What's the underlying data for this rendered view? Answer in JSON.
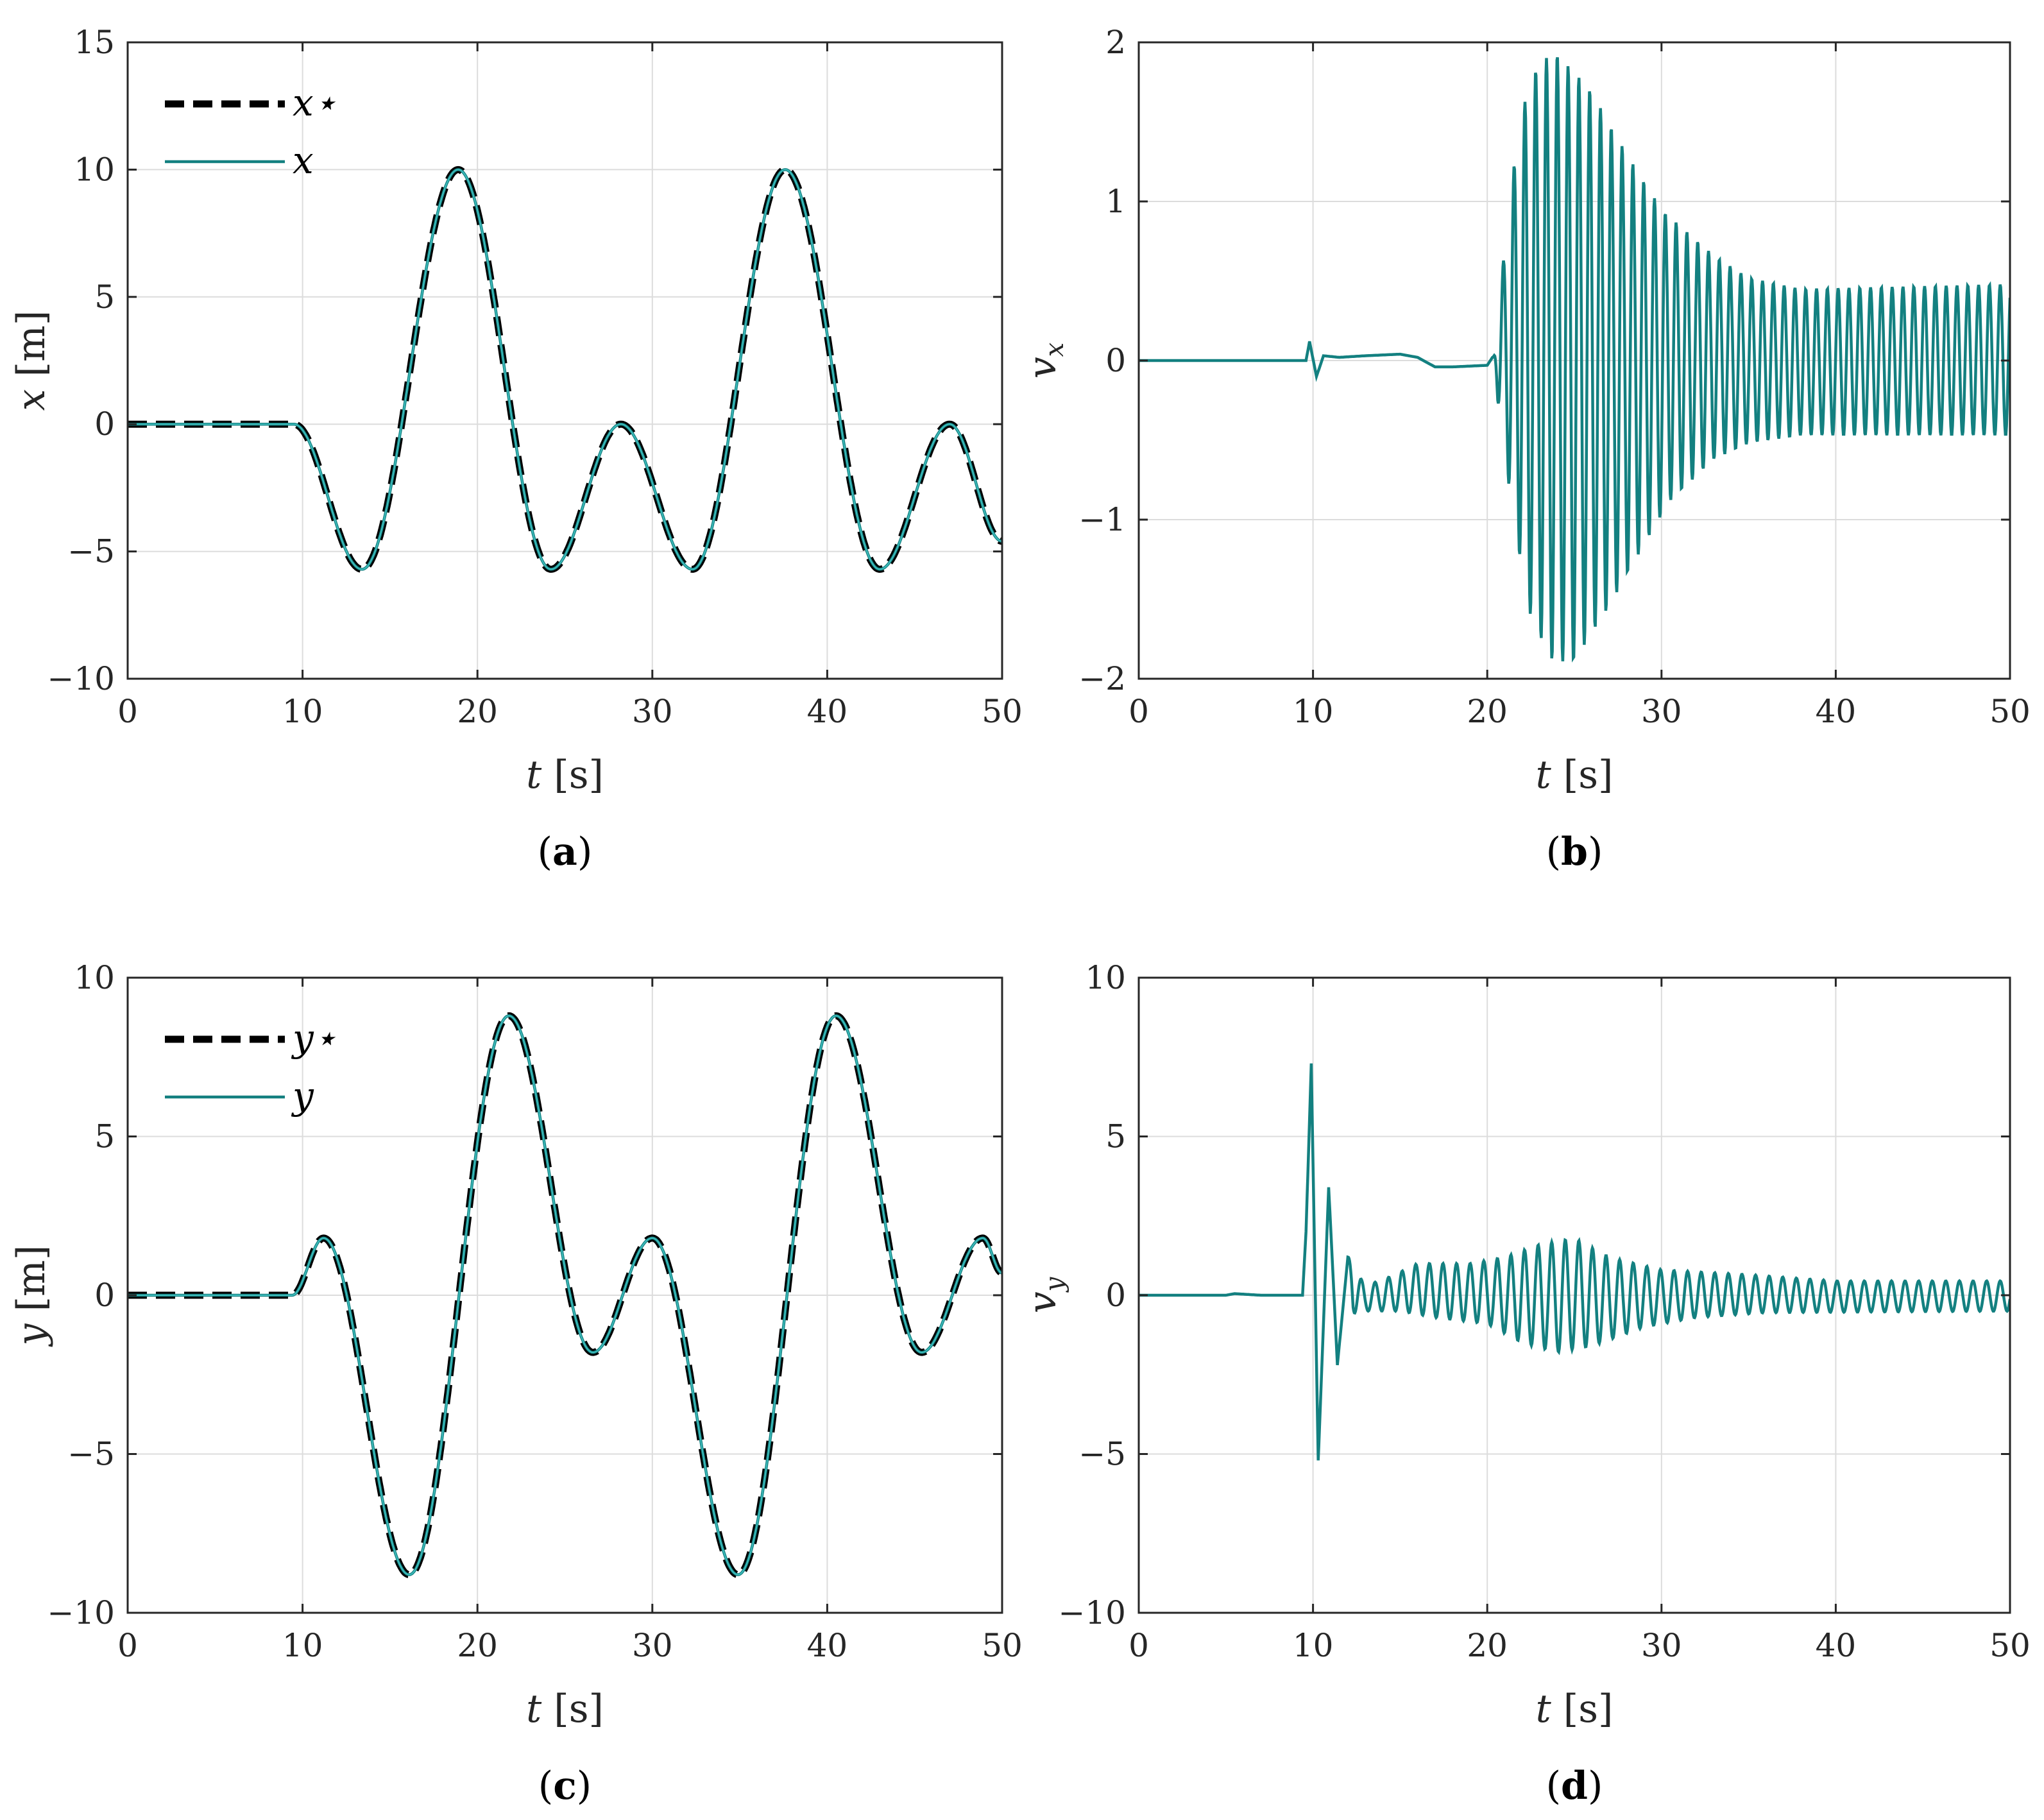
{
  "colors": {
    "reference": "#000000",
    "actual": "#138080",
    "highlight": "#3fbcbc",
    "grid": "#dcdcdc",
    "axis": "#262626"
  },
  "chart_data": [
    {
      "type": "line",
      "caption_letter": "a",
      "xlabel_var": "t",
      "xlabel_unit": "[s]",
      "ylabel_var": "x",
      "ylabel_unit": "[m]",
      "xlim": [
        0,
        50
      ],
      "ylim": [
        -10,
        15
      ],
      "xticks": [
        "0",
        "10",
        "20",
        "30",
        "40",
        "50"
      ],
      "yticks": [
        "−10",
        "−5",
        "0",
        "5",
        "10",
        "15"
      ],
      "legend": [
        "x⋆",
        "x"
      ],
      "signal": "x",
      "series": [
        {
          "name": "x⋆",
          "style": "dashed",
          "points": [
            [
              0,
              0
            ],
            [
              9.5,
              0
            ],
            [
              13.4,
              -5.7
            ],
            [
              18.9,
              10
            ],
            [
              24.2,
              -5.7
            ],
            [
              28.2,
              0
            ],
            [
              32.3,
              -5.7
            ],
            [
              37.6,
              10
            ],
            [
              43.0,
              -5.7
            ],
            [
              47.0,
              0
            ],
            [
              50,
              -4.6
            ]
          ]
        },
        {
          "name": "x",
          "style": "solid",
          "points": [
            [
              0,
              0
            ],
            [
              9.5,
              0
            ],
            [
              13.4,
              -5.7
            ],
            [
              18.9,
              10
            ],
            [
              24.2,
              -5.7
            ],
            [
              28.2,
              0
            ],
            [
              32.3,
              -5.7
            ],
            [
              37.6,
              10
            ],
            [
              43.0,
              -5.7
            ],
            [
              47.0,
              0
            ],
            [
              50,
              -4.6
            ]
          ]
        }
      ]
    },
    {
      "type": "line",
      "caption_letter": "b",
      "xlabel_var": "t",
      "xlabel_unit": "[s]",
      "ylabel_var": "v",
      "ylabel_sub": "x",
      "xlim": [
        0,
        50
      ],
      "ylim": [
        -2,
        2
      ],
      "xticks": [
        "0",
        "10",
        "20",
        "30",
        "40",
        "50"
      ],
      "yticks": [
        "−2",
        "−1",
        "0",
        "1",
        "2"
      ],
      "signal": "vx",
      "series": [
        {
          "name": "v_x",
          "style": "solid",
          "points": [
            [
              0,
              0
            ],
            [
              9.6,
              0
            ],
            [
              9.8,
              0.12
            ],
            [
              10.2,
              -0.1
            ],
            [
              10.6,
              0.03
            ],
            [
              11.5,
              0.02
            ],
            [
              13,
              0.03
            ],
            [
              15,
              0.04
            ],
            [
              16,
              0.02
            ],
            [
              17,
              -0.04
            ],
            [
              18,
              -0.04
            ],
            [
              20,
              -0.03
            ],
            [
              20.3,
              0.02
            ]
          ],
          "osc_start": 20.3,
          "period": 0.62,
          "amplitude_pos": [
            [
              20.3,
              0
            ],
            [
              21.5,
              1.2
            ],
            [
              22.4,
              1.78
            ],
            [
              23.8,
              1.95
            ],
            [
              25.8,
              1.72
            ],
            [
              28,
              1.3
            ],
            [
              30,
              0.95
            ],
            [
              33,
              0.66
            ],
            [
              35,
              0.52
            ],
            [
              38,
              0.45
            ],
            [
              50,
              0.48
            ]
          ],
          "amplitude_neg": [
            [
              20.3,
              0
            ],
            [
              21.2,
              -0.75
            ],
            [
              22.3,
              -1.55
            ],
            [
              23.6,
              -1.88
            ],
            [
              24.9,
              -1.9
            ],
            [
              26.8,
              -1.58
            ],
            [
              28.5,
              -1.25
            ],
            [
              30.5,
              -0.88
            ],
            [
              33,
              -0.62
            ],
            [
              35,
              -0.52
            ],
            [
              38,
              -0.47
            ],
            [
              50,
              -0.47
            ]
          ]
        }
      ]
    },
    {
      "type": "line",
      "caption_letter": "c",
      "xlabel_var": "t",
      "xlabel_unit": "[s]",
      "ylabel_var": "y",
      "ylabel_unit": "[m]",
      "xlim": [
        0,
        50
      ],
      "ylim": [
        -10,
        10
      ],
      "xticks": [
        "0",
        "10",
        "20",
        "30",
        "40",
        "50"
      ],
      "yticks": [
        "−10",
        "−5",
        "0",
        "5",
        "10"
      ],
      "legend": [
        "y⋆",
        "y"
      ],
      "signal": "y",
      "series": [
        {
          "name": "y⋆",
          "style": "dashed",
          "points": [
            [
              0,
              0
            ],
            [
              9.4,
              0
            ],
            [
              11.2,
              1.8
            ],
            [
              16.1,
              -8.8
            ],
            [
              21.8,
              8.8
            ],
            [
              26.6,
              -1.8
            ],
            [
              30.0,
              1.8
            ],
            [
              34.9,
              -8.8
            ],
            [
              40.5,
              8.8
            ],
            [
              45.4,
              -1.8
            ],
            [
              48.9,
              1.8
            ],
            [
              50,
              0.7
            ]
          ]
        },
        {
          "name": "y",
          "style": "solid",
          "points": [
            [
              0,
              0
            ],
            [
              9.4,
              0
            ],
            [
              11.2,
              1.8
            ],
            [
              16.1,
              -8.8
            ],
            [
              21.8,
              8.8
            ],
            [
              26.6,
              -1.8
            ],
            [
              30.0,
              1.8
            ],
            [
              34.9,
              -8.8
            ],
            [
              40.5,
              8.8
            ],
            [
              45.4,
              -1.8
            ],
            [
              48.9,
              1.8
            ],
            [
              50,
              0.7
            ]
          ]
        }
      ]
    },
    {
      "type": "line",
      "caption_letter": "d",
      "xlabel_var": "t",
      "xlabel_unit": "[s]",
      "ylabel_var": "v",
      "ylabel_sub": "y",
      "xlim": [
        0,
        50
      ],
      "ylim": [
        -10,
        10
      ],
      "xticks": [
        "0",
        "10",
        "20",
        "30",
        "40",
        "50"
      ],
      "yticks": [
        "−10",
        "−5",
        "0",
        "5",
        "10"
      ],
      "signal": "vy",
      "series": [
        {
          "name": "v_y",
          "style": "solid",
          "points": [
            [
              0,
              0
            ],
            [
              5,
              0
            ],
            [
              5.5,
              0.05
            ],
            [
              7,
              0
            ],
            [
              9.4,
              0
            ],
            [
              9.6,
              2.0
            ],
            [
              9.9,
              7.3
            ],
            [
              10.3,
              -5.2
            ],
            [
              10.9,
              3.4
            ],
            [
              11.4,
              -2.2
            ],
            [
              12.0,
              1.2
            ]
          ],
          "osc_start": 12.0,
          "period": 0.78,
          "amplitude_pos": [
            [
              12,
              1.2
            ],
            [
              13,
              0.3
            ],
            [
              14.5,
              0.6
            ],
            [
              16,
              1.0
            ],
            [
              19,
              1.0
            ],
            [
              21,
              1.2
            ],
            [
              23,
              1.6
            ],
            [
              25,
              1.8
            ],
            [
              27,
              1.2
            ],
            [
              30,
              0.8
            ],
            [
              35,
              0.65
            ],
            [
              40,
              0.45
            ],
            [
              50,
              0.45
            ]
          ],
          "amplitude_neg": [
            [
              12,
              -0.6
            ],
            [
              13,
              -0.5
            ],
            [
              15,
              -0.5
            ],
            [
              17,
              -0.7
            ],
            [
              20,
              -0.9
            ],
            [
              22,
              -1.5
            ],
            [
              24,
              -1.8
            ],
            [
              26,
              -1.6
            ],
            [
              29,
              -1.0
            ],
            [
              32,
              -0.7
            ],
            [
              36,
              -0.55
            ],
            [
              50,
              -0.5
            ]
          ]
        }
      ]
    }
  ]
}
